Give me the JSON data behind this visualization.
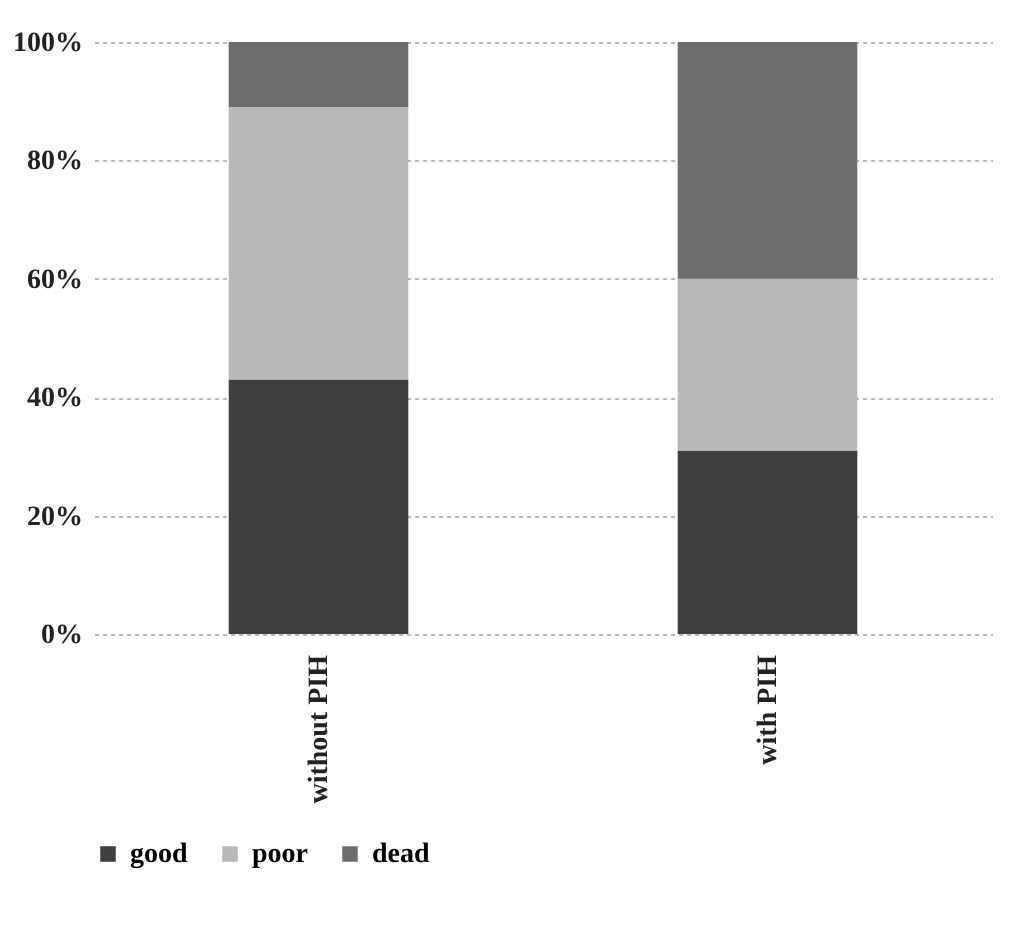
{
  "chart_data": {
    "type": "bar",
    "stacked": true,
    "categories": [
      "without PIH",
      "with PIH"
    ],
    "series": [
      {
        "name": "good",
        "color": "#3c3f3c",
        "values": [
          43,
          31
        ]
      },
      {
        "name": "poor",
        "color": "#b8b8b8",
        "values": [
          46,
          29
        ]
      },
      {
        "name": "dead",
        "color": "#6b6e6b",
        "values": [
          11,
          40
        ]
      }
    ],
    "ylim": [
      0,
      100
    ],
    "yticks": [
      {
        "value": 0,
        "label": "0%"
      },
      {
        "value": 20,
        "label": "20%"
      },
      {
        "value": 40,
        "label": "40%"
      },
      {
        "value": 60,
        "label": "60%"
      },
      {
        "value": 80,
        "label": "80%"
      },
      {
        "value": 100,
        "label": "100%"
      }
    ],
    "grid": "y",
    "legend": "bottom"
  }
}
